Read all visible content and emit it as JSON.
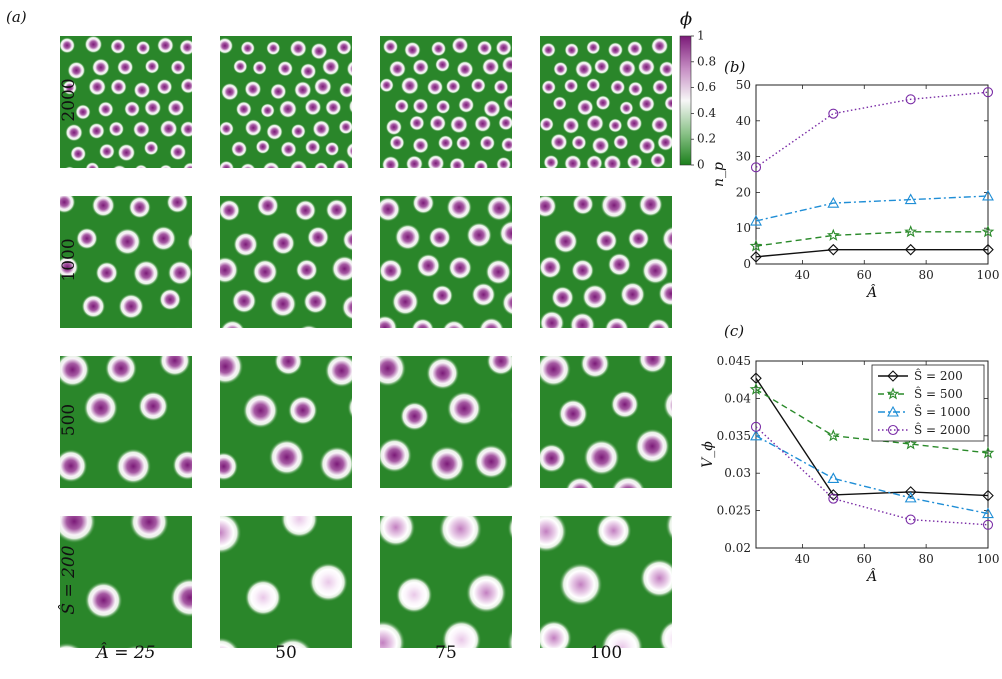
{
  "figure": {
    "panel_a_label": "(a)",
    "panel_b_label": "(b)",
    "panel_c_label": "(c)"
  },
  "panel_a": {
    "column_labels": [
      "Â = 25",
      "50",
      "75",
      "100"
    ],
    "row_labels": [
      "2000",
      "1000",
      "500",
      "Ŝ = 200"
    ],
    "colorbar": {
      "label": "ϕ",
      "ticks": [
        "1",
        "0.8",
        "0.6",
        "0.4",
        "0.2",
        "0"
      ],
      "colors": {
        "high": "#7b1a78",
        "mid": "#f7f7f7",
        "low": "#1b7f1b"
      }
    },
    "background_color": "#2a862a"
  },
  "chart_data": [
    {
      "panel": "b",
      "type": "line",
      "x": [
        25,
        50,
        75,
        100
      ],
      "xlabel": "Â",
      "ylabel": "n_p",
      "xlim": [
        25,
        100
      ],
      "ylim": [
        0,
        50
      ],
      "xticks": [
        "40",
        "60",
        "80",
        "100"
      ],
      "yticks": [
        "0",
        "10",
        "20",
        "30",
        "40",
        "50"
      ],
      "series": [
        {
          "values": [
            2,
            4,
            4,
            4
          ],
          "color": "#111111",
          "marker": "diamond",
          "dash": "solid"
        },
        {
          "values": [
            5,
            8,
            9,
            9
          ],
          "color": "#2a8a2a",
          "marker": "star",
          "dash": "dashed"
        },
        {
          "values": [
            12,
            17,
            18,
            19
          ],
          "color": "#1f8ed6",
          "marker": "triangle",
          "dash": "dashdot"
        },
        {
          "values": [
            27,
            42,
            46,
            48
          ],
          "color": "#7a2ca6",
          "marker": "circle",
          "dash": "dotted"
        }
      ]
    },
    {
      "panel": "c",
      "type": "line",
      "x": [
        25,
        50,
        75,
        100
      ],
      "xlabel": "Â",
      "ylabel": "V_ϕ",
      "xlim": [
        25,
        100
      ],
      "ylim": [
        0.02,
        0.045
      ],
      "xticks": [
        "40",
        "60",
        "80",
        "100"
      ],
      "yticks": [
        "0.02",
        "0.025",
        "0.03",
        "0.035",
        "0.04",
        "0.045"
      ],
      "legend_position": "top-right",
      "series": [
        {
          "name": "Ŝ = 200",
          "values": [
            0.0427,
            0.0271,
            0.0275,
            0.027
          ],
          "color": "#111111",
          "marker": "diamond",
          "dash": "solid"
        },
        {
          "name": "Ŝ = 500",
          "values": [
            0.0412,
            0.035,
            0.0339,
            0.0327
          ],
          "color": "#2a8a2a",
          "marker": "star",
          "dash": "dashed"
        },
        {
          "name": "Ŝ = 1000",
          "values": [
            0.035,
            0.0293,
            0.0267,
            0.0246
          ],
          "color": "#1f8ed6",
          "marker": "triangle",
          "dash": "dashdot"
        },
        {
          "name": "Ŝ = 2000",
          "values": [
            0.0362,
            0.0266,
            0.0238,
            0.0231
          ],
          "color": "#7a2ca6",
          "marker": "circle",
          "dash": "dotted"
        }
      ]
    }
  ]
}
